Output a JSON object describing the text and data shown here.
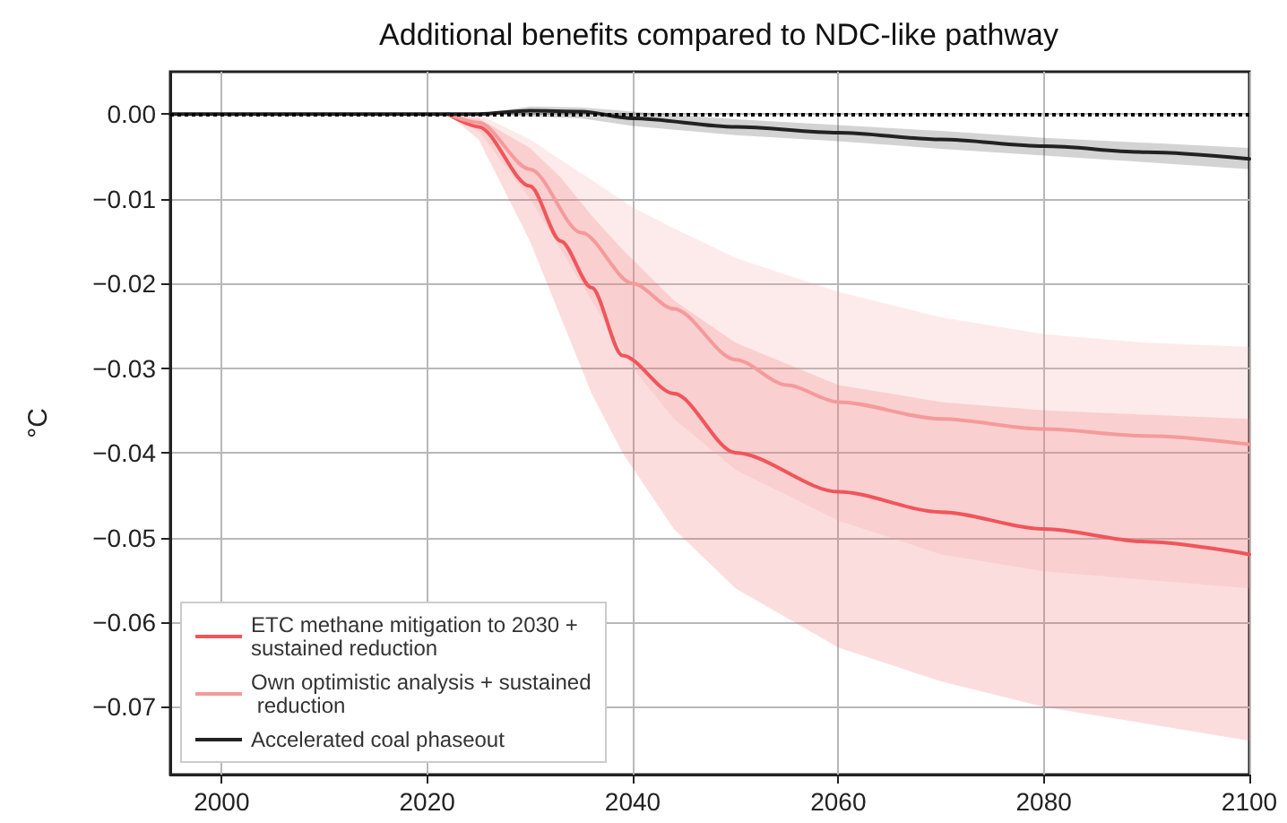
{
  "chart_data": {
    "type": "line",
    "title": "Additional benefits compared to NDC-like pathway",
    "ylabel": "°C",
    "xlim": [
      1995,
      2100
    ],
    "xticks": [
      2000,
      2020,
      2040,
      2060,
      2080,
      2100
    ],
    "ylim": [
      -0.078,
      0.005
    ],
    "yticks": [
      {
        "value": 0,
        "label": "0.00"
      },
      {
        "value": -0.01,
        "label": "−0.01"
      },
      {
        "value": -0.02,
        "label": "−0.02"
      },
      {
        "value": -0.03,
        "label": "−0.03"
      },
      {
        "value": -0.04,
        "label": "−0.04"
      },
      {
        "value": -0.05,
        "label": "−0.05"
      },
      {
        "value": -0.06,
        "label": "−0.06"
      },
      {
        "value": -0.07,
        "label": "−0.07"
      }
    ],
    "grid": true,
    "legend": "bottom left",
    "marker": "none",
    "line_style": "solid",
    "ref_lines": [
      {
        "axis": "y",
        "value": 0,
        "color": "#000000",
        "line_style": "dotted"
      }
    ],
    "series": [
      {
        "name": "ETC methane mitigation to 2030 + sustained reduction",
        "color": "#f0555a",
        "x": [
          2022,
          2025,
          2030,
          2033,
          2036,
          2039,
          2044,
          2050,
          2060,
          2070,
          2080,
          2090,
          2100
        ],
        "values": [
          0,
          -0.0015,
          -0.0085,
          -0.015,
          -0.0205,
          -0.0285,
          -0.033,
          -0.04,
          -0.0446,
          -0.047,
          -0.049,
          -0.0505,
          -0.052
        ],
        "lower": [
          0,
          -0.003,
          -0.015,
          -0.024,
          -0.033,
          -0.04,
          -0.049,
          -0.056,
          -0.063,
          -0.067,
          -0.07,
          -0.072,
          -0.074
        ],
        "upper": [
          0,
          -0.0005,
          -0.004,
          -0.0075,
          -0.012,
          -0.016,
          -0.022,
          -0.027,
          -0.032,
          -0.034,
          -0.035,
          -0.0355,
          -0.036
        ]
      },
      {
        "name": "Own optimistic analysis + sustained reduction",
        "color": "#f59a9a",
        "x": [
          2022,
          2025,
          2030,
          2035,
          2040,
          2044,
          2050,
          2055,
          2060,
          2070,
          2080,
          2090,
          2100
        ],
        "values": [
          0,
          -0.001,
          -0.0065,
          -0.014,
          -0.02,
          -0.023,
          -0.029,
          -0.032,
          -0.034,
          -0.036,
          -0.0372,
          -0.038,
          -0.039
        ],
        "lower": [
          0,
          -0.002,
          -0.01,
          -0.02,
          -0.03,
          -0.036,
          -0.042,
          -0.045,
          -0.048,
          -0.052,
          -0.054,
          -0.055,
          -0.056
        ],
        "upper": [
          0,
          0,
          -0.003,
          -0.007,
          -0.011,
          -0.0135,
          -0.017,
          -0.019,
          -0.021,
          -0.024,
          -0.026,
          -0.027,
          -0.0275
        ]
      },
      {
        "name": "Accelerated coal phaseout",
        "color": "#222222",
        "x": [
          1995,
          2025,
          2030,
          2035,
          2040,
          2050,
          2060,
          2070,
          2080,
          2090,
          2100
        ],
        "values": [
          0,
          0,
          0.0004,
          0.0003,
          -0.0005,
          -0.0015,
          -0.0022,
          -0.003,
          -0.0038,
          -0.0045,
          -0.0053
        ],
        "lower": [
          0,
          0,
          -0.0003,
          -0.0005,
          -0.0014,
          -0.0025,
          -0.0032,
          -0.0041,
          -0.0049,
          -0.0057,
          -0.0065
        ],
        "upper": [
          0,
          0,
          0.0009,
          0.0008,
          0.0003,
          -0.0006,
          -0.0013,
          -0.002,
          -0.0028,
          -0.0034,
          -0.004
        ]
      }
    ]
  }
}
